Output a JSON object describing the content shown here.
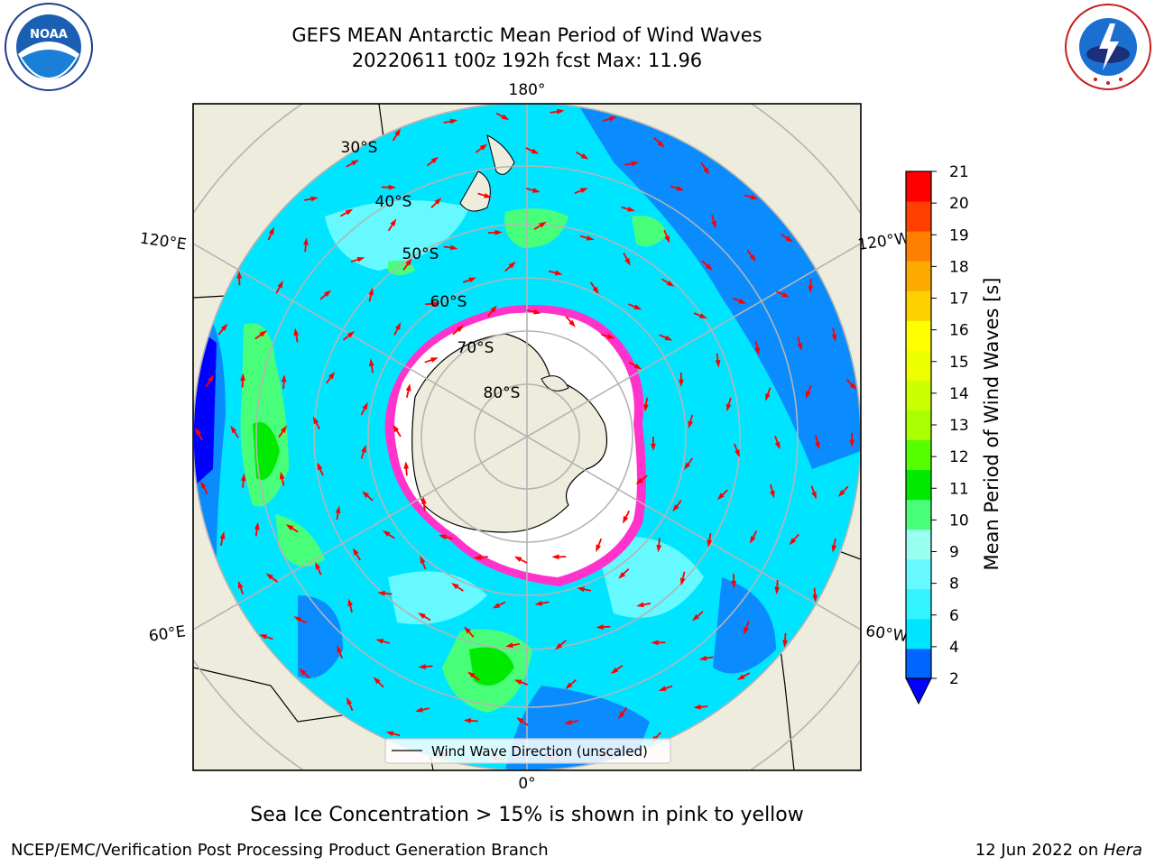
{
  "title": {
    "line1": "GEFS MEAN Antarctic Mean Period of Wind Waves",
    "line2": "20220611 t00z 192h fcst   Max: 11.96"
  },
  "map": {
    "projection": "south-polar-stereographic",
    "longitude_labels": {
      "top": "180°",
      "upper_left": "120°E",
      "upper_right": "120°W",
      "lower_left": "60°E",
      "lower_right": "60°W",
      "bottom": "0°"
    },
    "latitude_labels": [
      "30°S",
      "40°S",
      "50°S",
      "60°S",
      "70°S",
      "80°S"
    ],
    "legend": "Wind Wave Direction (unscaled)",
    "colors": {
      "land": "#eeecdc",
      "ocean_low": "#0064ff",
      "ocean_mid": "#00e5ff",
      "ocean_high": "#49ff49",
      "ice": "#ffffff",
      "ice_edge": "#ff33cc",
      "arrow": "#ff0000",
      "grid": "#b4b4b4"
    }
  },
  "colorbar": {
    "label": "Mean Period of Wind Waves [s]",
    "ticks": [
      "2",
      "4",
      "6",
      "8",
      "9",
      "10",
      "11",
      "12",
      "13",
      "14",
      "15",
      "16",
      "17",
      "18",
      "19",
      "20",
      "21"
    ],
    "colors": [
      "#0064ff",
      "#00e5ff",
      "#33f3ff",
      "#66f9ff",
      "#99fff0",
      "#49ff79",
      "#00ea00",
      "#55ff00",
      "#aaff00",
      "#ccff00",
      "#eeff00",
      "#ffff00",
      "#ffd000",
      "#ffaa00",
      "#ff8000",
      "#ff4000",
      "#ff0000"
    ],
    "under_color": "#0000ff"
  },
  "subcaption": "Sea Ice Concentration > 15% is shown in pink to yellow",
  "footer": {
    "left": "NCEP/EMC/Verification Post Processing Product Generation Branch",
    "date": "12 Jun 2022 on ",
    "host": "Hera"
  },
  "logos": {
    "left": "noaa-logo",
    "left_text": "NOAA",
    "right": "nws-logo"
  }
}
